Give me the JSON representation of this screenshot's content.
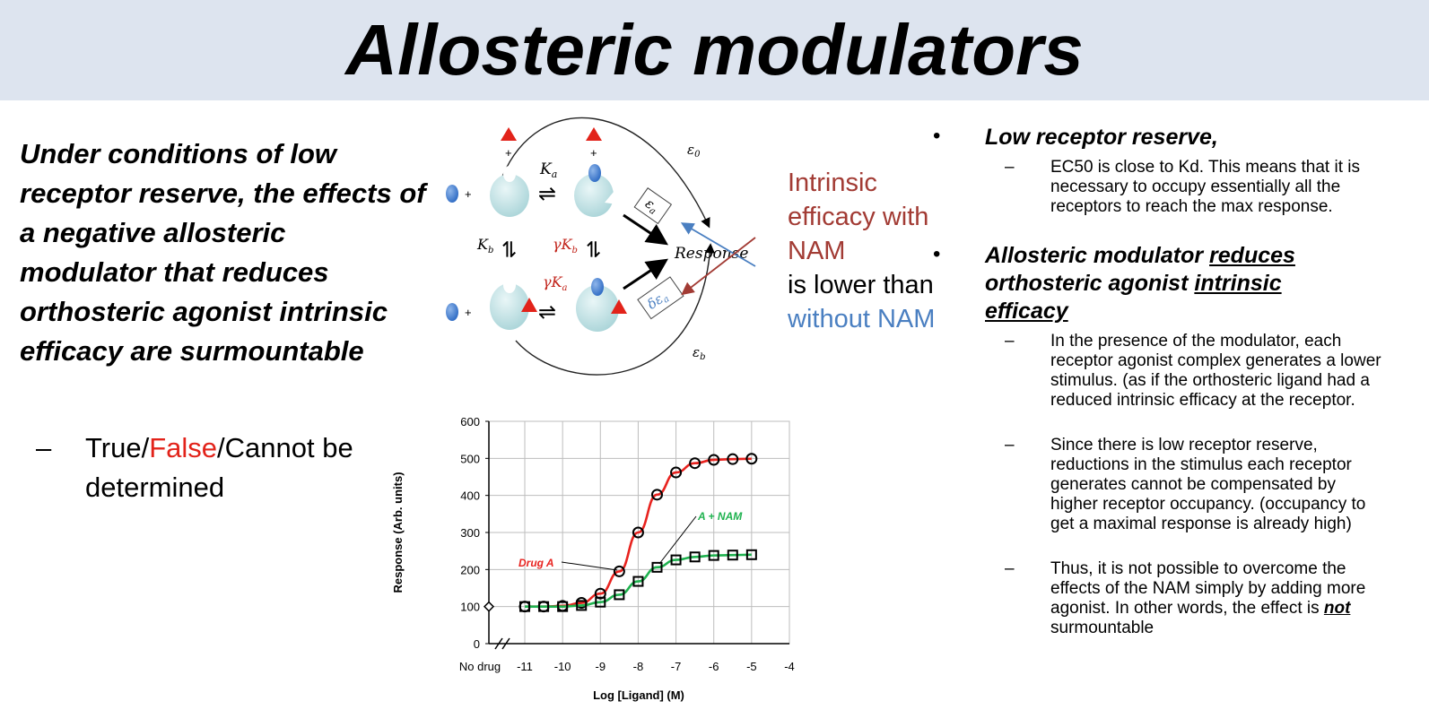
{
  "title": "Allosteric modulators",
  "question": "Under conditions of low receptor reserve, the effects of a negative allosteric modulator that reduces orthosteric agonist intrinsic efficacy are surmountable",
  "answer": {
    "dash": "–",
    "part1": "True/",
    "part2": "False",
    "part3": "/Cannot be determined"
  },
  "diagram": {
    "plus": "+",
    "Ka": "K",
    "Ka_sub": "a",
    "Kb": "K",
    "Kb_sub": "b",
    "gammaKb": "γK",
    "gammaKb_sub": "b",
    "gammaKa": "γK",
    "gammaKa_sub": "a",
    "eps0": "ε",
    "eps0_sub": "0",
    "epsa": "ε",
    "epsa_sub": "a",
    "depsa": "δε",
    "depsa_sub": "a",
    "epsb": "ε",
    "epsb_sub": "b",
    "equilibrium": "⇌",
    "response": "Response"
  },
  "note": {
    "red_text": "Intrinsic efficacy with NAM",
    "plain_text": "is lower  than",
    "blue_text": "without NAM"
  },
  "right": {
    "bullet": "•",
    "b1_title": "Low receptor reserve,",
    "b1_sub1": "EC50 is close to Kd.  This means that it is necessary to occupy essentially all the receptors to reach the max response.",
    "b2_t1": "Allosteric modulator ",
    "b2_t2": "reduces",
    "b2_t3": "orthosteric agonist ",
    "b2_t4": "intrinsic efficacy",
    "b2_sub1": "In the presence of the modulator, each receptor agonist complex generates a lower stimulus.  (as if the orthosteric ligand had a reduced intrinsic efficacy at the receptor.",
    "b2_sub2": "Since there is low receptor reserve, reductions in the stimulus each receptor generates cannot be compensated by higher receptor occupancy. (occupancy  to get a maximal response is already high)",
    "b2_sub3_a": "Thus, it is not possible to  overcome the effects of the NAM simply by adding more agonist. In other words, the effect is ",
    "b2_sub3_not": "not",
    "b2_sub3_b": " surmountable",
    "dash": "–"
  },
  "chart_data": {
    "type": "line",
    "xlabel": "Log [Ligand] (M)",
    "ylabel": "Response  (Arb. units)",
    "x_ticks": [
      "No drug",
      "-11",
      "-10",
      "-9",
      "-8",
      "-7",
      "-6",
      "-5",
      "-4"
    ],
    "y_ticks": [
      "0",
      "100",
      "200",
      "300",
      "400",
      "500",
      "600"
    ],
    "xlim": [
      -11.5,
      -4
    ],
    "ylim": [
      0,
      600
    ],
    "grid": true,
    "no_drug_value": 100,
    "series": [
      {
        "name": "Drug A",
        "color": "#e8231f",
        "marker": "circle",
        "x": [
          -11,
          -10.5,
          -10,
          -9.5,
          -9,
          -8.5,
          -8,
          -7.5,
          -7,
          -6.5,
          -6,
          -5.5,
          -5
        ],
        "y": [
          100,
          100,
          102,
          110,
          135,
          195,
          300,
          402,
          462,
          487,
          496,
          498,
          499
        ]
      },
      {
        "name": "A + NAM",
        "color": "#1fb24f",
        "marker": "square",
        "x": [
          -11,
          -10.5,
          -10,
          -9.5,
          -9,
          -8.5,
          -8,
          -7.5,
          -7,
          -6.5,
          -6,
          -5.5,
          -5
        ],
        "y": [
          100,
          100,
          100,
          103,
          112,
          132,
          168,
          206,
          226,
          234,
          238,
          239,
          240
        ]
      }
    ],
    "annotations": [
      {
        "text": "Drug A",
        "color": "#e8231f"
      },
      {
        "text": "A + NAM",
        "color": "#1fb24f"
      }
    ]
  }
}
